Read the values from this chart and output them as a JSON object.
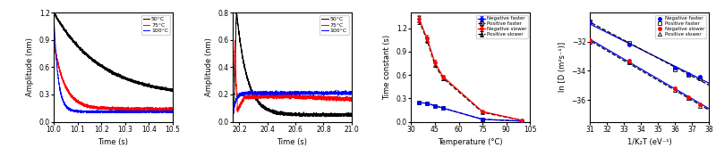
{
  "panel1": {
    "xlabel": "Time (s)",
    "ylabel": "Amplitude (nm)",
    "xlim": [
      10.0,
      10.5
    ],
    "ylim": [
      0.0,
      1.2
    ],
    "yticks": [
      0.0,
      0.3,
      0.6,
      0.9,
      1.2
    ],
    "xticks": [
      10.0,
      10.1,
      10.2,
      10.3,
      10.4,
      10.5
    ],
    "labels": [
      "50°C",
      "75°C",
      "100°C"
    ],
    "colors": [
      "black",
      "red",
      "blue"
    ],
    "decay_params": [
      {
        "A": 0.93,
        "tau": 0.2,
        "B": 0.27
      },
      {
        "A": 0.75,
        "tau": 0.045,
        "B": 0.14
      },
      {
        "A": 1.07,
        "tau": 0.018,
        "B": 0.11
      }
    ]
  },
  "panel2": {
    "xlabel": "Time (s)",
    "ylabel": "Amplitude (nm)",
    "xlim": [
      20.15,
      21.0
    ],
    "ylim": [
      0.0,
      0.8
    ],
    "yticks": [
      0.0,
      0.2,
      0.4,
      0.6,
      0.8
    ],
    "xticks": [
      20.2,
      20.4,
      20.6,
      20.8,
      21.0
    ],
    "labels": [
      "50°C",
      "75°C",
      "100°C"
    ],
    "colors": [
      "black",
      "red",
      "blue"
    ]
  },
  "panel3": {
    "xlabel": "Temperature (°C)",
    "ylabel": "Time constant (s)",
    "xlim": [
      30,
      105
    ],
    "ylim": [
      0.0,
      1.4
    ],
    "yticks": [
      0.0,
      0.3,
      0.6,
      0.9,
      1.2
    ],
    "xticks": [
      30,
      45,
      60,
      75,
      90,
      105
    ],
    "temps": [
      35,
      40,
      45,
      50,
      75,
      100
    ],
    "neg_faster": [
      0.245,
      0.235,
      0.205,
      0.175,
      0.03,
      0.008
    ],
    "pos_faster": [
      0.245,
      0.235,
      0.205,
      0.175,
      0.03,
      0.008
    ],
    "neg_slower": [
      1.32,
      1.07,
      0.76,
      0.58,
      0.13,
      0.018
    ],
    "pos_slower": [
      1.3,
      1.05,
      0.73,
      0.56,
      0.12,
      0.016
    ],
    "neg_faster_err": [
      0.01,
      0.01,
      0.008,
      0.008,
      0.004,
      0.002
    ],
    "neg_slower_err": [
      0.05,
      0.04,
      0.03,
      0.025,
      0.008,
      0.003
    ],
    "pos_faster_err": [
      0.01,
      0.01,
      0.008,
      0.008,
      0.004,
      0.002
    ],
    "pos_slower_err": [
      0.05,
      0.04,
      0.03,
      0.025,
      0.008,
      0.003
    ]
  },
  "panel4": {
    "xlabel": "1/K₂T (eV⁻¹)",
    "ylabel": "ln [D (m²s⁻¹)]",
    "xlim": [
      31,
      38
    ],
    "ylim": [
      -37.5,
      -30.0
    ],
    "yticks": [
      -36,
      -34,
      -32
    ],
    "xticks": [
      31,
      32,
      33,
      34,
      35,
      36,
      37,
      38
    ],
    "inv_temps": [
      31.0,
      33.3,
      36.0,
      36.8,
      37.5
    ],
    "neg_faster_y": [
      -30.7,
      -32.2,
      -33.8,
      -34.2,
      -34.4
    ],
    "pos_faster_y": [
      -30.6,
      -32.1,
      -33.9,
      -34.3,
      -34.5
    ],
    "neg_slower_y": [
      -31.9,
      -33.3,
      -35.2,
      -35.8,
      -36.3
    ],
    "pos_slower_y": [
      -32.0,
      -33.4,
      -35.3,
      -35.9,
      -36.4
    ]
  }
}
